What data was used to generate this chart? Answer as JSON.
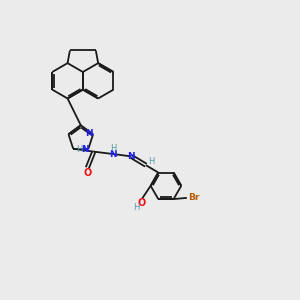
{
  "background_color": "#ebebeb",
  "bond_color": "#1a1a1a",
  "N_color": "#2020ff",
  "O_color": "#ee1111",
  "Br_color": "#b85a00",
  "H_color": "#5599aa",
  "figsize": [
    3.0,
    3.0
  ],
  "dpi": 100,
  "xlim": [
    0,
    10
  ],
  "ylim": [
    0,
    10
  ]
}
